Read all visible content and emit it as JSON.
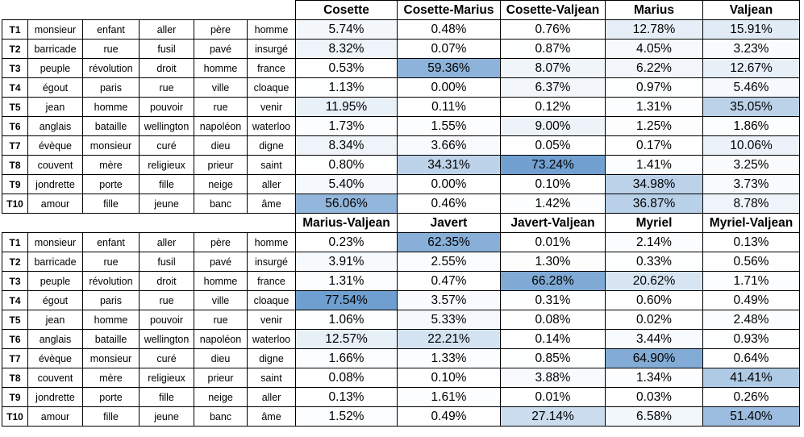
{
  "topic_words": [
    [
      "monsieur",
      "enfant",
      "aller",
      "père",
      "homme"
    ],
    [
      "barricade",
      "rue",
      "fusil",
      "pavé",
      "insurgé"
    ],
    [
      "peuple",
      "révolution",
      "droit",
      "homme",
      "france"
    ],
    [
      "égout",
      "paris",
      "rue",
      "ville",
      "cloaque"
    ],
    [
      "jean",
      "homme",
      "pouvoir",
      "rue",
      "venir"
    ],
    [
      "anglais",
      "bataille",
      "wellington",
      "napoléon",
      "waterloo"
    ],
    [
      "évèque",
      "monsieur",
      "curé",
      "dieu",
      "digne"
    ],
    [
      "couvent",
      "mère",
      "religieux",
      "prieur",
      "saint"
    ],
    [
      "jondrette",
      "porte",
      "fille",
      "neige",
      "aller"
    ],
    [
      "amour",
      "fille",
      "jeune",
      "banc",
      "âme"
    ]
  ],
  "topic_ids": [
    "T1",
    "T2",
    "T3",
    "T4",
    "T5",
    "T6",
    "T7",
    "T8",
    "T9",
    "T10"
  ],
  "highlight_color": "#6f9fd0",
  "blocks": [
    {
      "columns": [
        "Cosette",
        "Cosette-Marius",
        "Cosette-Valjean",
        "Marius",
        "Valjean"
      ],
      "values": [
        [
          "5.74%",
          "0.48%",
          "0.76%",
          "12.78%",
          "15.91%"
        ],
        [
          "8.32%",
          "0.07%",
          "0.87%",
          "4.05%",
          "3.23%"
        ],
        [
          "0.53%",
          "59.36%",
          "8.07%",
          "6.22%",
          "12.67%"
        ],
        [
          "1.13%",
          "0.00%",
          "6.37%",
          "0.97%",
          "5.46%"
        ],
        [
          "11.95%",
          "0.11%",
          "0.12%",
          "1.31%",
          "35.05%"
        ],
        [
          "1.73%",
          "1.55%",
          "9.00%",
          "1.25%",
          "1.86%"
        ],
        [
          "8.34%",
          "3.66%",
          "0.05%",
          "0.17%",
          "10.06%"
        ],
        [
          "0.80%",
          "34.31%",
          "73.24%",
          "1.41%",
          "3.25%"
        ],
        [
          "5.40%",
          "0.00%",
          "0.10%",
          "34.98%",
          "3.73%"
        ],
        [
          "56.06%",
          "0.46%",
          "1.42%",
          "36.87%",
          "8.78%"
        ]
      ]
    },
    {
      "columns": [
        "Marius-Valjean",
        "Javert",
        "Javert-Valjean",
        "Myriel",
        "Myriel-Valjean"
      ],
      "values": [
        [
          "0.23%",
          "62.35%",
          "0.01%",
          "2.14%",
          "0.13%"
        ],
        [
          "3.91%",
          "2.55%",
          "1.30%",
          "0.33%",
          "0.56%"
        ],
        [
          "1.31%",
          "0.47%",
          "66.28%",
          "20.62%",
          "1.71%"
        ],
        [
          "77.54%",
          "3.57%",
          "0.31%",
          "0.60%",
          "0.49%"
        ],
        [
          "1.06%",
          "5.33%",
          "0.08%",
          "0.02%",
          "2.48%"
        ],
        [
          "12.57%",
          "22.21%",
          "0.14%",
          "3.44%",
          "0.93%"
        ],
        [
          "1.66%",
          "1.33%",
          "0.85%",
          "64.90%",
          "0.64%"
        ],
        [
          "0.08%",
          "0.10%",
          "3.88%",
          "1.34%",
          "41.41%"
        ],
        [
          "0.13%",
          "1.61%",
          "0.01%",
          "0.03%",
          "0.26%"
        ],
        [
          "1.52%",
          "0.49%",
          "27.14%",
          "6.58%",
          "51.40%"
        ]
      ]
    }
  ]
}
